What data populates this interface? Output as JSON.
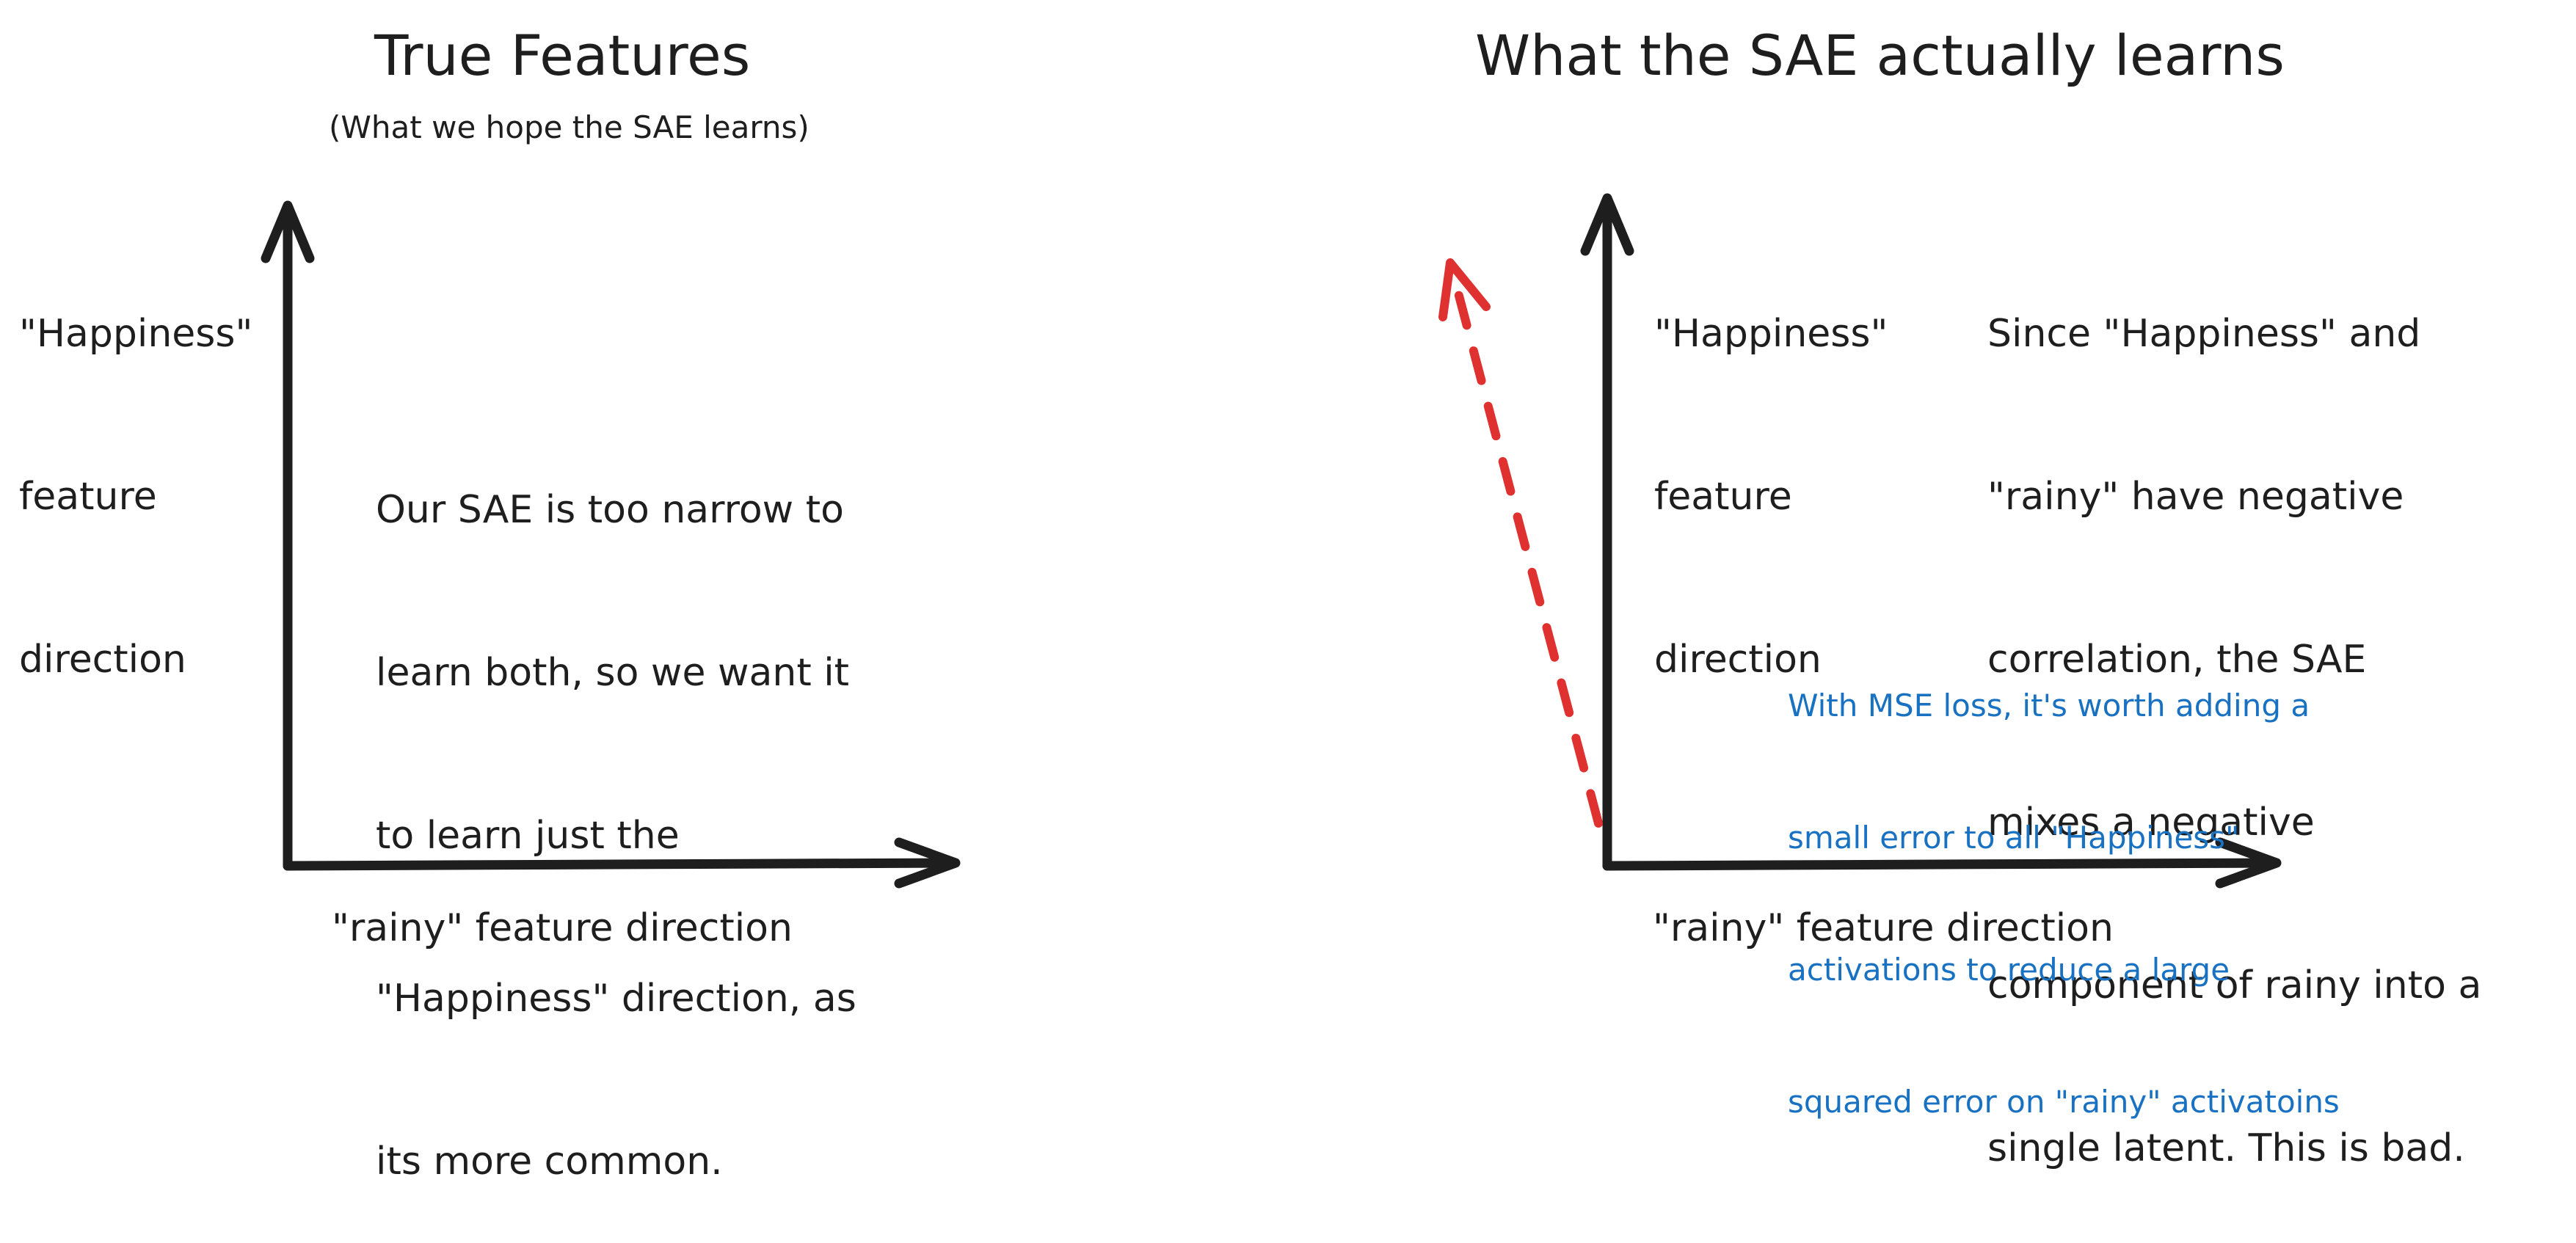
{
  "colors": {
    "ink": "#1e1e1e",
    "red_arrow": "#e03131",
    "blue_note": "#1971c2"
  },
  "left_panel": {
    "title": "True Features",
    "subtitle": "(What we hope the SAE learns)",
    "y_axis_label": [
      "\"Happiness\"",
      "feature",
      "direction"
    ],
    "x_axis_label": "\"rainy\" feature direction",
    "note": [
      "Our SAE is too narrow to",
      "learn both, so we want it",
      "to learn just the",
      "\"Happiness\" direction, as",
      "its more common."
    ]
  },
  "right_panel": {
    "title": "What the SAE actually learns",
    "y_axis_label": [
      "\"Happiness\"",
      "feature",
      "direction"
    ],
    "x_axis_label": "\"rainy\" feature direction",
    "note": [
      "Since \"Happiness\" and",
      "\"rainy\" have negative",
      "correlation, the SAE",
      "mixes a negative",
      "component of rainy into a",
      "single latent. This is bad."
    ],
    "blue_note": [
      "With MSE loss, it's worth adding a",
      "small error to all \"Happiness\"",
      "activations to reduce a large",
      "squared error on \"rainy\" activatoins"
    ]
  }
}
